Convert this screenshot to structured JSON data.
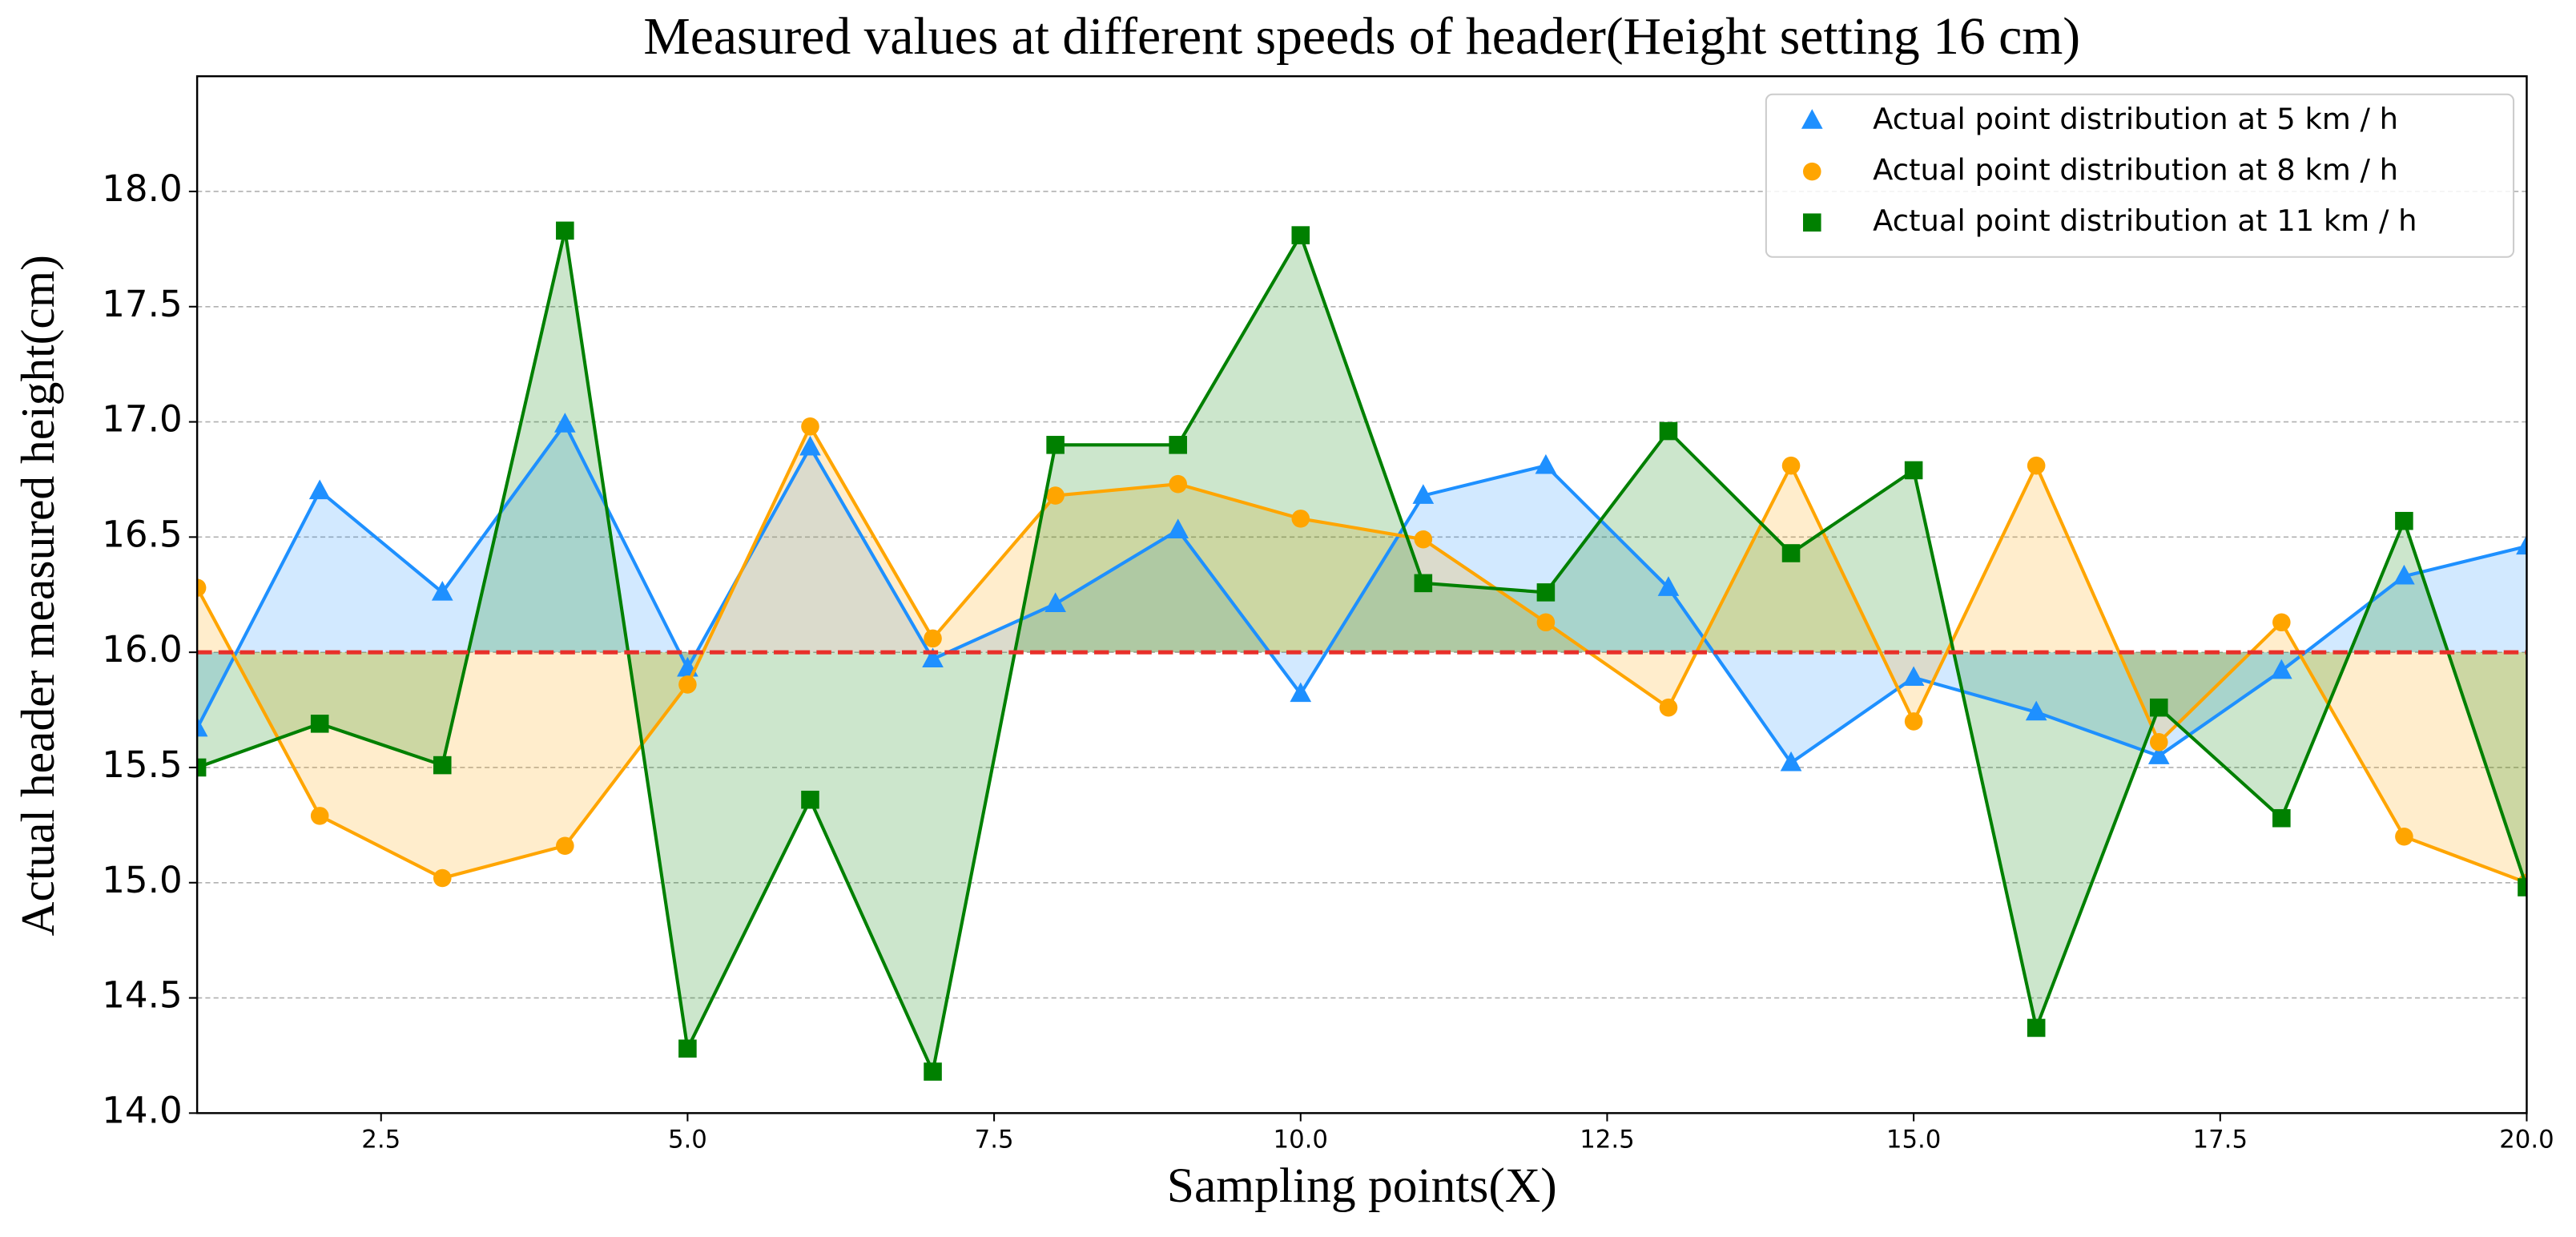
{
  "chart_data": {
    "type": "line",
    "title": "Measured values at different speeds of header(Height setting 16 cm)",
    "x_label": "Sampling points(X)",
    "y_label": "Actual header measured height(cm)",
    "x": [
      1,
      2,
      3,
      4,
      5,
      6,
      7,
      8,
      9,
      10,
      11,
      12,
      13,
      14,
      15,
      16,
      17,
      18,
      19,
      20
    ],
    "series": [
      {
        "name": "Actual point distribution at 5 km / h",
        "color": "#1e90ff",
        "marker": "triangle",
        "values": [
          15.67,
          16.7,
          16.26,
          16.99,
          15.93,
          16.89,
          15.97,
          16.21,
          16.53,
          15.82,
          16.68,
          16.81,
          16.28,
          15.52,
          15.89,
          15.74,
          15.55,
          15.92,
          16.33,
          16.46
        ]
      },
      {
        "name": "Actual point distribution at 8 km / h",
        "color": "#ffa500",
        "marker": "circle",
        "values": [
          16.28,
          15.29,
          15.02,
          15.16,
          15.86,
          16.98,
          16.06,
          16.68,
          16.73,
          16.58,
          16.49,
          16.13,
          15.76,
          16.81,
          15.7,
          16.81,
          15.61,
          16.13,
          15.2,
          15.0
        ]
      },
      {
        "name": "Actual point distribution at 11 km / h",
        "color": "#008000",
        "marker": "square",
        "values": [
          15.5,
          15.69,
          15.51,
          17.83,
          14.28,
          15.36,
          14.18,
          16.9,
          16.9,
          17.81,
          16.3,
          16.26,
          16.96,
          16.43,
          16.79,
          14.37,
          15.76,
          15.28,
          16.57,
          14.98
        ]
      }
    ],
    "reference_line": {
      "value": 16,
      "color": "#e8302a"
    },
    "fill_to_reference": true,
    "xlim": [
      1,
      20
    ],
    "xticks": [
      2.5,
      {
        "value": 5,
        "label": "5.0"
      },
      7.5,
      {
        "value": 10,
        "label": "10.0"
      },
      12.5,
      {
        "value": 15,
        "label": "15.0"
      },
      17.5,
      {
        "value": 20,
        "label": "20.0"
      }
    ],
    "ylim": [
      14,
      18.5
    ],
    "yticks": [
      {
        "value": 14,
        "label": "14.0"
      },
      14.5,
      {
        "value": 15,
        "label": "15.0"
      },
      15.5,
      {
        "value": 16,
        "label": "16.0"
      },
      16.5,
      {
        "value": 17,
        "label": "17.0"
      },
      17.5,
      {
        "value": 18,
        "label": "18.0"
      }
    ],
    "grid": "y",
    "legend": "upper right"
  }
}
